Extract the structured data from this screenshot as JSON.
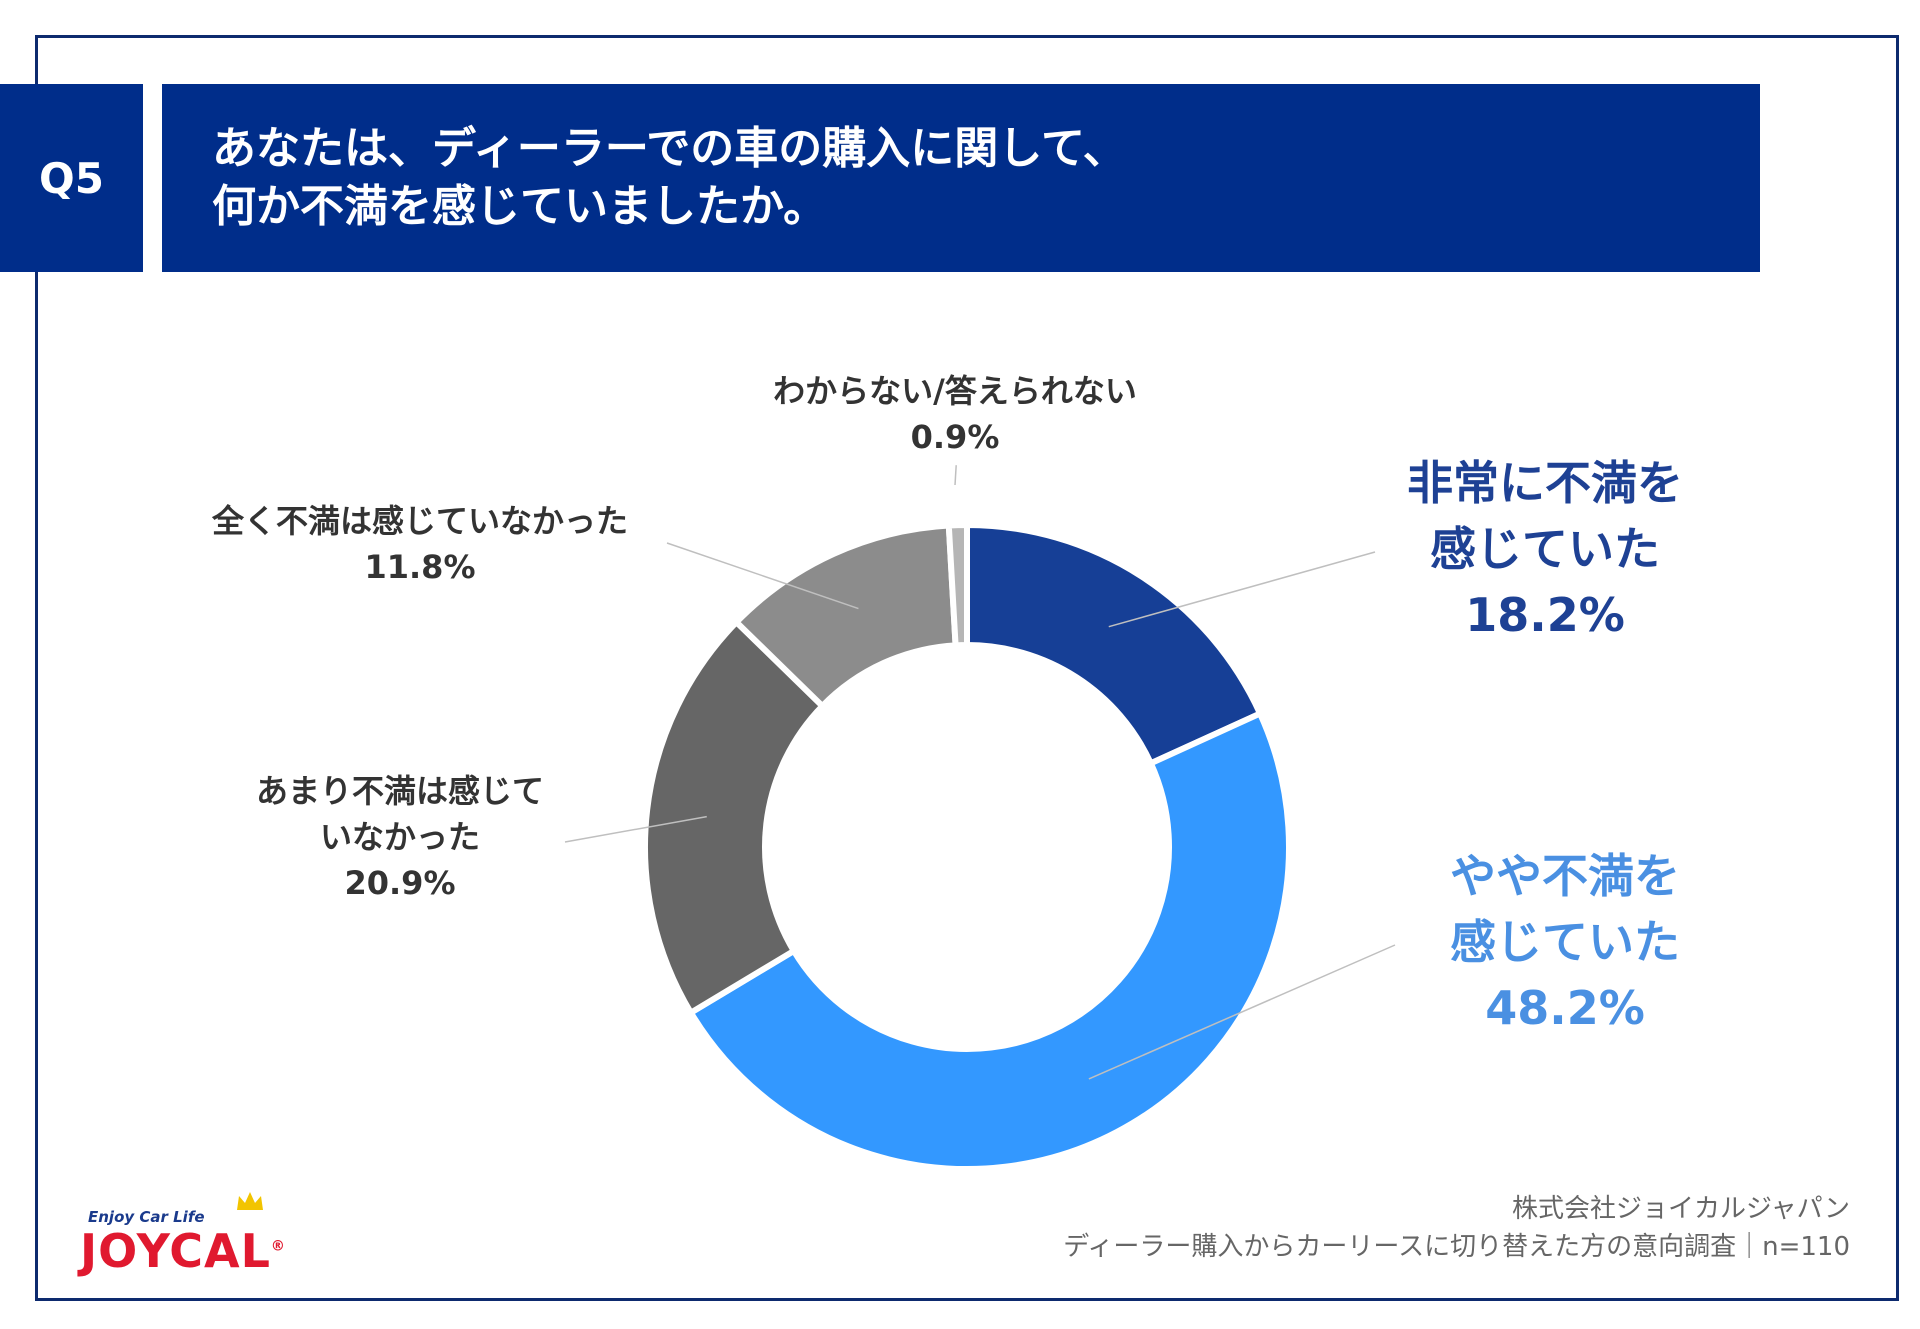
{
  "question": {
    "badge": "Q5",
    "title_line1": "あなたは、ディーラーでの車の購入に関して、",
    "title_line2": "何か不満を感じていましたか。"
  },
  "chart_data": {
    "type": "pie",
    "donut": true,
    "slices": [
      {
        "label_lines": [
          "非常に不満を",
          "感じていた"
        ],
        "value": 18.2,
        "value_text": "18.2%",
        "color": "#163f96"
      },
      {
        "label_lines": [
          "やや不満を",
          "感じていた"
        ],
        "value": 48.2,
        "value_text": "48.2%",
        "color": "#3398ff"
      },
      {
        "label_lines": [
          "あまり不満は感じて",
          "いなかった"
        ],
        "value": 20.9,
        "value_text": "20.9%",
        "color": "#666666"
      },
      {
        "label_lines": [
          "全く不満は感じていなかった"
        ],
        "value": 11.8,
        "value_text": "11.8%",
        "color": "#8c8c8c"
      },
      {
        "label_lines": [
          "わからない/答えられない"
        ],
        "value": 0.9,
        "value_text": "0.9%",
        "color": "#b5b5b5"
      }
    ]
  },
  "footer": {
    "company": "株式会社ジョイカルジャパン",
    "survey": "ディーラー購入からカーリースに切り替えた方の意向調査｜n=110"
  },
  "logo": {
    "tagline": "Enjoy Car Life",
    "wordmark": "JOYCAL",
    "registered": "®"
  },
  "colors": {
    "brand_navy": "#002d8a",
    "frame": "#0d2a6e",
    "logo_red": "#e0192f"
  }
}
